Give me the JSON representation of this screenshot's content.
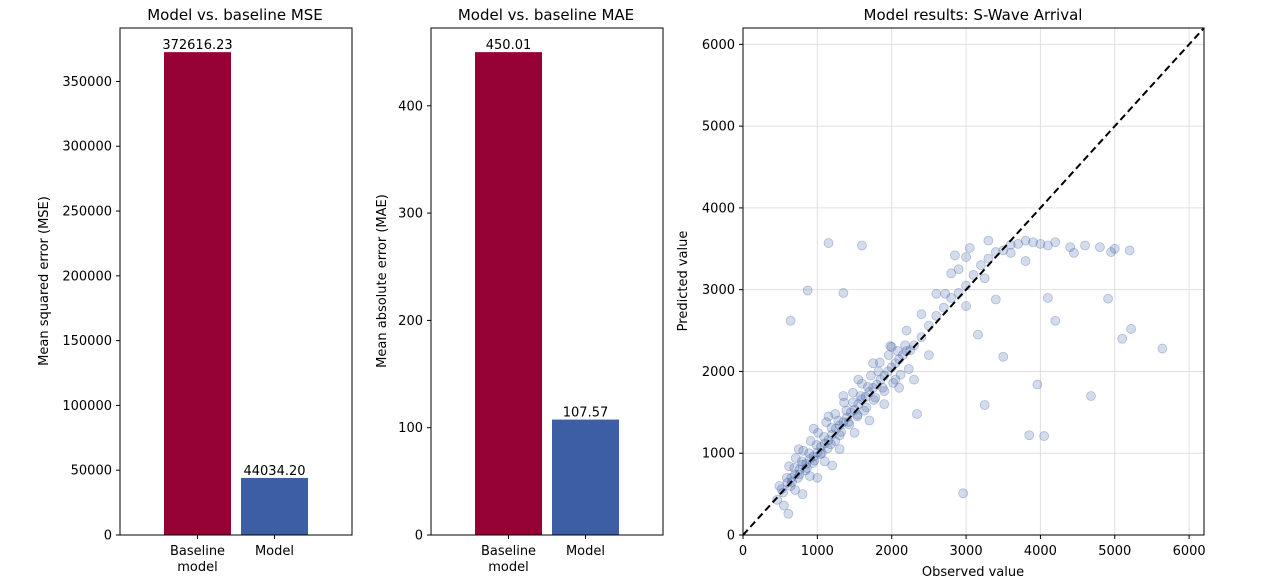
{
  "colors": {
    "baseline_bar": "#970236",
    "model_bar": "#3b5fa2",
    "scatter_point": "#3b5fa2",
    "diagonal": "#000000",
    "grid": "#e0e0e0"
  },
  "chart_data": [
    {
      "type": "bar",
      "title": "Model vs. baseline MSE",
      "xlabel": "",
      "ylabel": "Mean squared error (MSE)",
      "categories": [
        "Baseline\nmodel",
        "Model"
      ],
      "values": [
        372616.23,
        44034.2
      ],
      "value_labels": [
        "372616.23",
        "44034.20"
      ],
      "ylim": [
        0,
        391247
      ],
      "yticks": [
        0,
        50000,
        100000,
        150000,
        200000,
        250000,
        300000,
        350000
      ],
      "ytick_labels": [
        "0",
        "50000",
        "100000",
        "150000",
        "200000",
        "250000",
        "300000",
        "350000"
      ],
      "grid": false
    },
    {
      "type": "bar",
      "title": "Model vs. baseline MAE",
      "xlabel": "",
      "ylabel": "Mean absolute error (MAE)",
      "categories": [
        "Baseline\nmodel",
        "Model"
      ],
      "values": [
        450.01,
        107.57
      ],
      "value_labels": [
        "450.01",
        "107.57"
      ],
      "ylim": [
        0,
        472.5
      ],
      "yticks": [
        0,
        100,
        200,
        300,
        400
      ],
      "ytick_labels": [
        "0",
        "100",
        "200",
        "300",
        "400"
      ],
      "grid": false
    },
    {
      "type": "scatter",
      "title": "Model results: S-Wave Arrival",
      "xlabel": "Observed value",
      "ylabel": "Predicted value",
      "xlim": [
        0,
        6200
      ],
      "ylim": [
        0,
        6200
      ],
      "xticks": [
        0,
        1000,
        2000,
        3000,
        4000,
        5000,
        6000
      ],
      "xtick_labels": [
        "0",
        "1000",
        "2000",
        "3000",
        "4000",
        "5000",
        "6000"
      ],
      "yticks": [
        0,
        1000,
        2000,
        3000,
        4000,
        5000,
        6000
      ],
      "ytick_labels": [
        "0",
        "1000",
        "2000",
        "3000",
        "4000",
        "5000",
        "6000"
      ],
      "grid": true,
      "reference_line": "y = x",
      "points": [
        [
          460,
          430
        ],
        [
          520,
          560
        ],
        [
          600,
          640
        ],
        [
          650,
          700
        ],
        [
          700,
          740
        ],
        [
          760,
          800
        ],
        [
          800,
          860
        ],
        [
          850,
          870
        ],
        [
          900,
          930
        ],
        [
          950,
          960
        ],
        [
          1000,
          1010
        ],
        [
          1050,
          1080
        ],
        [
          1100,
          1120
        ],
        [
          1150,
          1160
        ],
        [
          1200,
          1230
        ],
        [
          1250,
          1300
        ],
        [
          1300,
          1340
        ],
        [
          1350,
          1380
        ],
        [
          1400,
          1440
        ],
        [
          1450,
          1500
        ],
        [
          1500,
          1530
        ],
        [
          1550,
          1600
        ],
        [
          1600,
          1660
        ],
        [
          1650,
          1690
        ],
        [
          1700,
          1750
        ],
        [
          1750,
          1800
        ],
        [
          1800,
          1840
        ],
        [
          1850,
          1900
        ],
        [
          1900,
          1950
        ],
        [
          1950,
          2000
        ],
        [
          2000,
          2050
        ],
        [
          2050,
          2100
        ],
        [
          2100,
          2150
        ],
        [
          2150,
          2200
        ],
        [
          2200,
          2250
        ],
        [
          2250,
          2260
        ],
        [
          2300,
          2320
        ],
        [
          2400,
          2420
        ],
        [
          2500,
          2560
        ],
        [
          2600,
          2680
        ],
        [
          2700,
          2780
        ],
        [
          2800,
          2900
        ],
        [
          2900,
          2960
        ],
        [
          3000,
          3050
        ],
        [
          3100,
          3180
        ],
        [
          3200,
          3300
        ],
        [
          3300,
          3380
        ],
        [
          3400,
          3460
        ],
        [
          3500,
          3480
        ],
        [
          3600,
          3550
        ],
        [
          3700,
          3560
        ],
        [
          3800,
          3600
        ],
        [
          3900,
          3580
        ],
        [
          4000,
          3560
        ],
        [
          4100,
          3540
        ],
        [
          4200,
          3580
        ],
        [
          4400,
          3520
        ],
        [
          4600,
          3540
        ],
        [
          4800,
          3520
        ],
        [
          5000,
          3500
        ],
        [
          5200,
          3480
        ],
        [
          5640,
          2280
        ],
        [
          4680,
          1700
        ],
        [
          4050,
          1210
        ],
        [
          3960,
          1840
        ],
        [
          3850,
          1220
        ],
        [
          3500,
          2180
        ],
        [
          3250,
          1590
        ],
        [
          2960,
          510
        ],
        [
          2340,
          1480
        ],
        [
          1600,
          3540
        ],
        [
          1350,
          2960
        ],
        [
          1150,
          3570
        ],
        [
          870,
          2990
        ],
        [
          640,
          2620
        ],
        [
          610,
          260
        ],
        [
          1000,
          700
        ],
        [
          1200,
          850
        ],
        [
          800,
          500
        ],
        [
          550,
          360
        ],
        [
          700,
          550
        ],
        [
          900,
          720
        ],
        [
          1100,
          900
        ],
        [
          1300,
          1050
        ],
        [
          1500,
          1250
        ],
        [
          1700,
          1400
        ],
        [
          1900,
          1600
        ],
        [
          2100,
          1800
        ],
        [
          2300,
          1900
        ],
        [
          2500,
          2200
        ],
        [
          750,
          1050
        ],
        [
          950,
          1300
        ],
        [
          1150,
          1450
        ],
        [
          1350,
          1700
        ],
        [
          1550,
          1900
        ],
        [
          1750,
          2100
        ],
        [
          2000,
          2300
        ],
        [
          2200,
          2500
        ],
        [
          2400,
          2700
        ],
        [
          2600,
          2950
        ],
        [
          2800,
          3200
        ],
        [
          3000,
          3400
        ],
        [
          3300,
          3600
        ],
        [
          3600,
          3450
        ],
        [
          3800,
          3350
        ],
        [
          4100,
          2900
        ],
        [
          4200,
          2620
        ],
        [
          4450,
          3450
        ],
        [
          4950,
          3460
        ],
        [
          5100,
          2400
        ],
        [
          5220,
          2520
        ],
        [
          4910,
          2890
        ],
        [
          3160,
          2450
        ],
        [
          3400,
          2880
        ],
        [
          3250,
          3140
        ],
        [
          2720,
          2950
        ],
        [
          2900,
          3250
        ],
        [
          3000,
          2800
        ],
        [
          2850,
          3420
        ],
        [
          3050,
          3510
        ],
        [
          1980,
          2310
        ],
        [
          2050,
          1900
        ],
        [
          1880,
          1800
        ],
        [
          1820,
          2000
        ],
        [
          1760,
          1650
        ],
        [
          1680,
          1810
        ],
        [
          1630,
          1520
        ],
        [
          1580,
          1700
        ],
        [
          1540,
          1450
        ],
        [
          1480,
          1620
        ],
        [
          1430,
          1350
        ],
        [
          1390,
          1520
        ],
        [
          1320,
          1260
        ],
        [
          1280,
          1400
        ],
        [
          1240,
          1150
        ],
        [
          1190,
          1310
        ],
        [
          1140,
          1060
        ],
        [
          1090,
          1200
        ],
        [
          1040,
          990
        ],
        [
          990,
          1100
        ],
        [
          940,
          880
        ],
        [
          890,
          1000
        ],
        [
          840,
          790
        ],
        [
          790,
          900
        ],
        [
          740,
          700
        ],
        [
          690,
          820
        ],
        [
          640,
          600
        ],
        [
          590,
          700
        ],
        [
          540,
          520
        ],
        [
          490,
          600
        ],
        [
          2230,
          2030
        ],
        [
          2180,
          2320
        ],
        [
          2120,
          1960
        ],
        [
          2080,
          2250
        ],
        [
          2020,
          1860
        ],
        [
          1960,
          2200
        ],
        [
          1900,
          1760
        ],
        [
          1840,
          2110
        ],
        [
          1780,
          1680
        ],
        [
          1720,
          1950
        ],
        [
          1660,
          1560
        ],
        [
          1600,
          1850
        ],
        [
          1540,
          1470
        ],
        [
          1480,
          1740
        ],
        [
          1420,
          1380
        ],
        [
          1360,
          1620
        ],
        [
          1300,
          1220
        ],
        [
          1240,
          1480
        ],
        [
          1180,
          1110
        ],
        [
          1120,
          1380
        ],
        [
          1060,
          1000
        ],
        [
          1010,
          1250
        ],
        [
          960,
          910
        ],
        [
          910,
          1150
        ],
        [
          860,
          820
        ],
        [
          810,
          1030
        ],
        [
          760,
          740
        ],
        [
          710,
          940
        ],
        [
          660,
          650
        ],
        [
          620,
          840
        ]
      ]
    }
  ]
}
